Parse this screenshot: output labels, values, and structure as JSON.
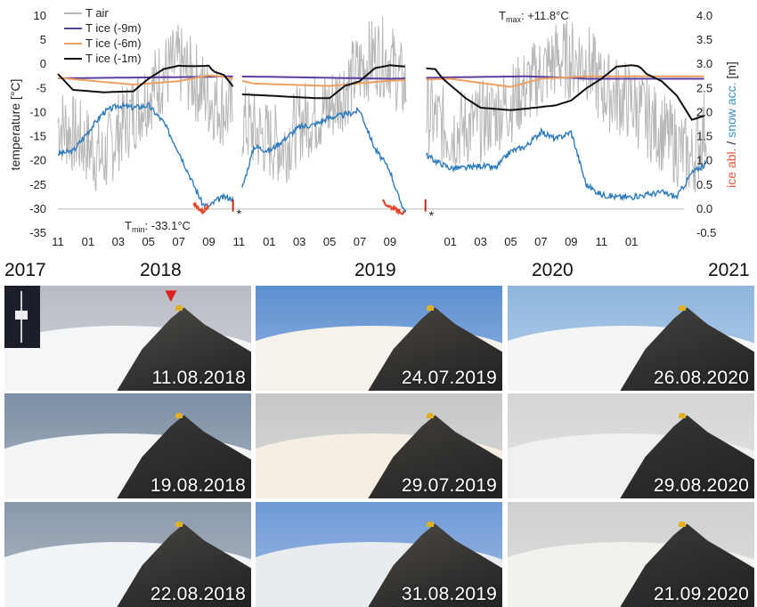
{
  "chart_data": {
    "type": "line",
    "x_tick_labels": [
      "11",
      "01",
      "03",
      "05",
      "07",
      "09",
      "11",
      "01",
      "03",
      "05",
      "07",
      "09",
      "01",
      "03",
      "05",
      "07",
      "09",
      "11",
      "01"
    ],
    "year_labels": [
      "2017",
      "2018",
      "2019",
      "2020",
      "2021"
    ],
    "y_left": {
      "label": "temperature [°C]",
      "ticks": [
        10,
        5,
        0,
        -5,
        -10,
        -15,
        -20,
        -25,
        -30,
        -35
      ],
      "range": [
        -35,
        10
      ]
    },
    "y_right": {
      "label_parts": [
        {
          "text": "ice abl.",
          "color": "#e8553a"
        },
        {
          "text": " / ",
          "color": "#222222"
        },
        {
          "text": "snow acc.",
          "color": "#3a8ec8"
        },
        {
          "text": " [m]",
          "color": "#222222"
        }
      ],
      "ticks": [
        "4.0",
        "3.5",
        "3.0",
        "2.5",
        "2.0",
        "1.5",
        "1.0",
        "0.5",
        "0.0",
        "-0.5"
      ],
      "range": [
        -0.5,
        4.0
      ]
    },
    "legend": [
      {
        "name": "T air",
        "color": "#b8b8b8"
      },
      {
        "name": "T ice (-9m)",
        "color": "#5b3fa0"
      },
      {
        "name": "T ice (-6m)",
        "color": "#f0a060"
      },
      {
        "name": "T ice (-1m)",
        "color": "#111111"
      }
    ],
    "annotations": {
      "tmax_label": "T",
      "tmax_sub": "max",
      "tmax_value": ": +11.8°C",
      "tmin_label": "T",
      "tmin_sub": "min",
      "tmin_value": ": -33.1°C",
      "star1": "*",
      "star2": "*"
    },
    "series_m_index": "months since Nov 2017",
    "series": {
      "t_ice_9m": [
        [
          0,
          -2.9
        ],
        [
          10,
          -2.6
        ],
        [
          11,
          -2.5
        ],
        [
          14,
          -2.6
        ],
        [
          22,
          -3.0
        ],
        [
          26,
          -2.7
        ],
        [
          31,
          -2.5
        ],
        [
          34,
          -2.8
        ],
        [
          35,
          -3.0
        ]
      ],
      "t_ice_6m": [
        [
          0,
          -2.8
        ],
        [
          5,
          -4.2
        ],
        [
          8,
          -3.5
        ],
        [
          10,
          -2.3
        ],
        [
          11,
          -2.6
        ],
        [
          13,
          -4.0
        ],
        [
          18,
          -4.5
        ],
        [
          22,
          -3.4
        ],
        [
          26,
          -3.0
        ],
        [
          30,
          -4.7
        ],
        [
          32,
          -3.0
        ],
        [
          35,
          -2.5
        ]
      ],
      "t_ice_1m": [
        [
          0,
          -2
        ],
        [
          1,
          -5.3
        ],
        [
          3,
          -5.8
        ],
        [
          5,
          -5.6
        ],
        [
          6,
          -3
        ],
        [
          7,
          -1
        ],
        [
          8,
          -0.3
        ],
        [
          9,
          -0.4
        ],
        [
          10,
          -0.3
        ],
        [
          10.3,
          -1.5
        ],
        [
          11,
          -2.2
        ],
        [
          12,
          -6.2
        ],
        [
          14,
          -6.5
        ],
        [
          17,
          -7
        ],
        [
          18,
          -7
        ],
        [
          19,
          -4.5
        ],
        [
          20,
          -3.5
        ],
        [
          21,
          -0.8
        ],
        [
          22,
          -0.2
        ],
        [
          25,
          -1
        ],
        [
          25.5,
          -3
        ],
        [
          27,
          -7
        ],
        [
          28,
          -9
        ],
        [
          30,
          -9.5
        ],
        [
          31,
          -9.2
        ],
        [
          33,
          -8.5
        ],
        [
          34,
          -7.5
        ],
        [
          35,
          -5
        ],
        [
          36,
          -3
        ],
        [
          37,
          -0.5
        ],
        [
          38,
          -0.2
        ],
        [
          38.5,
          -0.4
        ],
        [
          39,
          -2
        ],
        [
          40,
          -3.5
        ],
        [
          41,
          -6.5
        ],
        [
          42,
          -11.5
        ],
        [
          43,
          -10.5
        ]
      ],
      "snow_acc": [
        [
          0,
          1.15
        ],
        [
          1,
          1.2
        ],
        [
          2,
          1.6
        ],
        [
          3,
          2.0
        ],
        [
          4,
          2.15
        ],
        [
          5,
          2.1
        ],
        [
          6,
          2.15
        ],
        [
          7,
          1.8
        ],
        [
          8,
          1.2
        ],
        [
          9,
          0.5
        ],
        [
          9.6,
          0.1
        ],
        [
          10,
          0.05
        ],
        [
          10.5,
          0.18
        ],
        [
          11,
          0.25
        ],
        [
          12,
          0.2
        ],
        [
          13,
          1.3
        ],
        [
          14,
          1.2
        ],
        [
          15,
          1.45
        ],
        [
          16,
          1.7
        ],
        [
          17,
          1.75
        ],
        [
          18,
          1.9
        ],
        [
          19,
          1.95
        ],
        [
          20,
          2.05
        ],
        [
          21,
          1.25
        ],
        [
          22,
          0.8
        ],
        [
          22.5,
          0.3
        ],
        [
          23,
          -0.05
        ],
        [
          24,
          1.2
        ],
        [
          25,
          1.0
        ],
        [
          26,
          0.85
        ],
        [
          27,
          0.85
        ],
        [
          28,
          0.9
        ],
        [
          29,
          0.85
        ],
        [
          30,
          1.2
        ],
        [
          31,
          1.3
        ],
        [
          32,
          1.6
        ],
        [
          33,
          1.45
        ],
        [
          34,
          1.6
        ],
        [
          35,
          0.5
        ],
        [
          36,
          0.3
        ],
        [
          37,
          0.25
        ],
        [
          38,
          0.25
        ],
        [
          39,
          0.3
        ],
        [
          40,
          0.35
        ],
        [
          41,
          0.25
        ],
        [
          42,
          0.75
        ],
        [
          43,
          0.95
        ]
      ],
      "ice_abl": [
        [
          9,
          0.1
        ],
        [
          9.6,
          -0.05
        ],
        [
          10,
          0.05
        ],
        [
          21.5,
          0.15
        ],
        [
          22,
          0.05
        ],
        [
          23,
          -0.1
        ]
      ]
    }
  },
  "photos": [
    {
      "date": "11.08.2018",
      "sky": "#b8bcc4",
      "snow": "#f4f6f8",
      "rock": "#55524e",
      "inset": true,
      "arrow": true
    },
    {
      "date": "24.07.2019",
      "sky": "#5d8fd0",
      "snow": "#f6f2ea",
      "rock": "#4f4a44"
    },
    {
      "date": "26.08.2020",
      "sky": "#8fb6de",
      "snow": "#f5f5f5",
      "rock": "#4a4845"
    },
    {
      "date": "19.08.2018",
      "sky": "#7c8ea3",
      "snow": "#f2f4f6",
      "rock": "#3e3c3a"
    },
    {
      "date": "29.07.2019",
      "sky": "#c5c7c9",
      "snow": "#f4efe2",
      "rock": "#48443f"
    },
    {
      "date": "29.08.2020",
      "sky": "#d3d5d7",
      "snow": "#eef0f2",
      "rock": "#3b3a38"
    },
    {
      "date": "22.08.2018",
      "sky": "#8a98aa",
      "snow": "#f1f4f7",
      "rock": "#4e4b47"
    },
    {
      "date": "31.08.2019",
      "sky": "#6f9ad6",
      "snow": "#e8ecf0",
      "rock": "#55504a"
    },
    {
      "date": "21.09.2020",
      "sky": "#cfd0d0",
      "snow": "#f3f1ee",
      "rock": "#403e3b"
    }
  ]
}
